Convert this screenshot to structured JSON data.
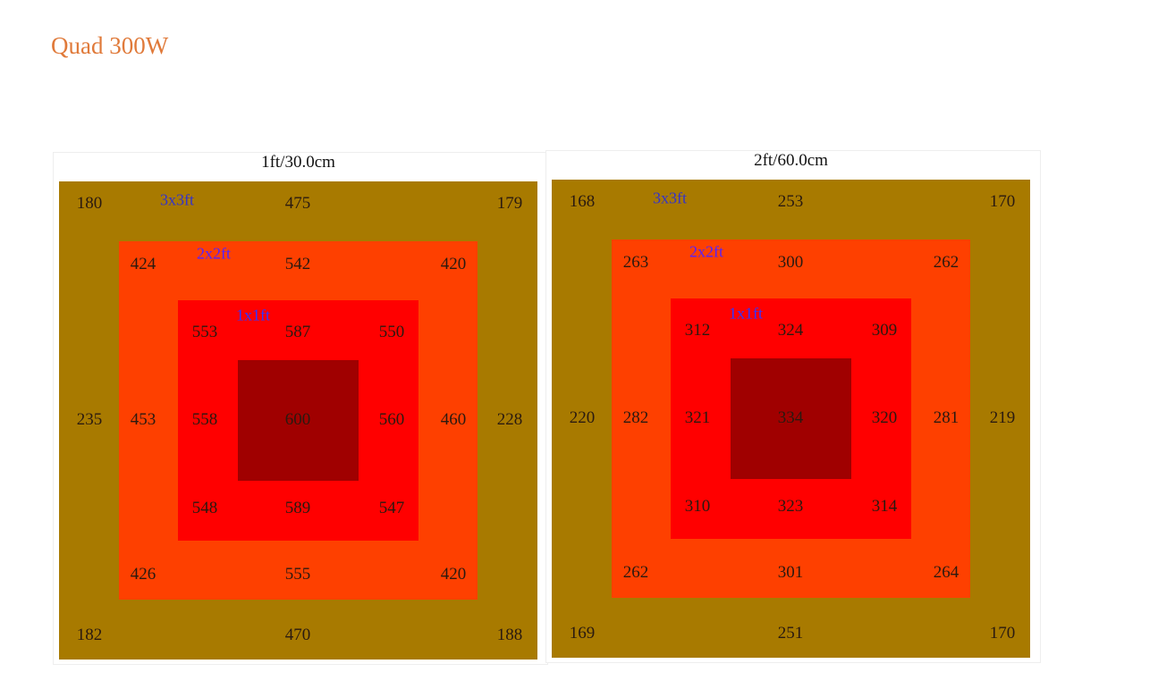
{
  "title": "Quad 300W",
  "panels": [
    {
      "heading": "1ft/30.0cm",
      "zones": [
        {
          "label": "3x3ft",
          "values": [
            180,
            475,
            179,
            235,
            228,
            182,
            470,
            188
          ]
        },
        {
          "label": "2x2ft",
          "values": [
            424,
            542,
            420,
            453,
            460,
            426,
            555,
            420
          ]
        },
        {
          "label": "1x1ft",
          "values": [
            553,
            587,
            550,
            558,
            560,
            548,
            589,
            547
          ]
        }
      ],
      "center": 600
    },
    {
      "heading": "2ft/60.0cm",
      "zones": [
        {
          "label": "3x3ft",
          "values": [
            168,
            253,
            170,
            220,
            219,
            169,
            251,
            170
          ]
        },
        {
          "label": "2x2ft",
          "values": [
            263,
            300,
            262,
            282,
            281,
            262,
            301,
            264
          ]
        },
        {
          "label": "1x1ft",
          "values": [
            312,
            324,
            309,
            321,
            320,
            310,
            323,
            314
          ]
        }
      ],
      "center": 334
    }
  ]
}
